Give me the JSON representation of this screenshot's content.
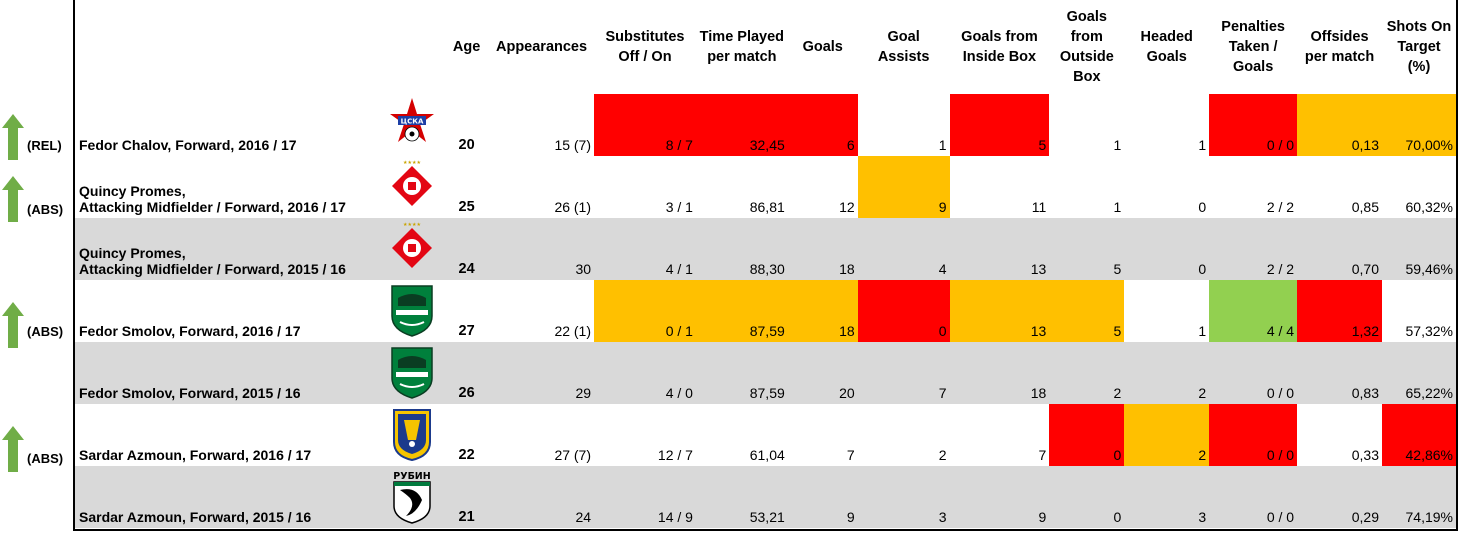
{
  "colors": {
    "worse": "#ff0000",
    "mid": "#ffc000",
    "better": "#92d050",
    "arrow": "#70ad47",
    "grey_row": "#d9d9d9"
  },
  "headers": {
    "age": "Age",
    "appearances": "Appearances",
    "substitutes": "Substitutes Off / On",
    "time_played": "Time Played per match",
    "goals": "Goals",
    "goal_assists": "Goal Assists",
    "goals_inside": "Goals from Inside Box",
    "goals_outside": "Goals from Outside Box",
    "headed": "Headed Goals",
    "penalties": "Penalties Taken / Goals",
    "offsides": "Offsides per match",
    "shots": "Shots On Target (%)"
  },
  "rows": [
    {
      "marker": "(REL)",
      "name_line1": "Fedor Chalov, Forward, 2016 / 17",
      "name_line2": "",
      "club_icon": "cska-moscow-logo",
      "age": "20",
      "appearances": "15 (7)",
      "substitutes": "8 / 7",
      "time_played": "32,45",
      "goals": "6",
      "goal_assists": "1",
      "goals_inside": "5",
      "goals_outside": "1",
      "headed": "1",
      "penalties": "0 / 0",
      "offsides": "0,13",
      "shots": "70,00%"
    },
    {
      "marker": "(ABS)",
      "name_line1": "Quincy Promes,",
      "name_line2": "Attacking Midfielder / Forward, 2016 / 17",
      "club_icon": "spartak-moscow-logo",
      "age": "25",
      "appearances": "26 (1)",
      "substitutes": "3 / 1",
      "time_played": "86,81",
      "goals": "12",
      "goal_assists": "9",
      "goals_inside": "11",
      "goals_outside": "1",
      "headed": "0",
      "penalties": "2 / 2",
      "offsides": "0,85",
      "shots": "60,32%"
    },
    {
      "marker": "",
      "name_line1": "Quincy Promes,",
      "name_line2": "Attacking Midfielder / Forward, 2015 / 16",
      "club_icon": "spartak-moscow-logo",
      "age": "24",
      "appearances": "30",
      "substitutes": "4 / 1",
      "time_played": "88,30",
      "goals": "18",
      "goal_assists": "4",
      "goals_inside": "13",
      "goals_outside": "5",
      "headed": "0",
      "penalties": "2 / 2",
      "offsides": "0,70",
      "shots": "59,46%"
    },
    {
      "marker": "(ABS)",
      "name_line1": "Fedor Smolov, Forward, 2016 / 17",
      "name_line2": "",
      "club_icon": "krasnodar-logo",
      "age": "27",
      "appearances": "22 (1)",
      "substitutes": "0 / 1",
      "time_played": "87,59",
      "goals": "18",
      "goal_assists": "0",
      "goals_inside": "13",
      "goals_outside": "5",
      "headed": "1",
      "penalties": "4 / 4",
      "offsides": "1,32",
      "shots": "57,32%"
    },
    {
      "marker": "",
      "name_line1": "Fedor Smolov, Forward, 2015 / 16",
      "name_line2": "",
      "club_icon": "krasnodar-logo",
      "age": "26",
      "appearances": "29",
      "substitutes": "4 / 0",
      "time_played": "87,59",
      "goals": "20",
      "goal_assists": "7",
      "goals_inside": "18",
      "goals_outside": "2",
      "headed": "2",
      "penalties": "0 / 0",
      "offsides": "0,83",
      "shots": "65,22%"
    },
    {
      "marker": "(ABS)",
      "name_line1": "Sardar Azmoun, Forward, 2016 / 17",
      "name_line2": "",
      "club_icon": "rostov-logo",
      "age": "22",
      "appearances": "27 (7)",
      "substitutes": "12 / 7",
      "time_played": "61,04",
      "goals": "7",
      "goal_assists": "2",
      "goals_inside": "7",
      "goals_outside": "0",
      "headed": "2",
      "penalties": "0 / 0",
      "offsides": "0,33",
      "shots": "42,86%"
    },
    {
      "marker": "",
      "name_line1": "Sardar Azmoun, Forward, 2015 / 16",
      "name_line2": "",
      "club_icon": "rubin-kazan-logo",
      "club_text": "РУБИН",
      "age": "21",
      "appearances": "24",
      "substitutes": "14 / 9",
      "time_played": "53,21",
      "goals": "9",
      "goal_assists": "3",
      "goals_inside": "9",
      "goals_outside": "0",
      "headed": "3",
      "penalties": "0 / 0",
      "offsides": "0,29",
      "shots": "74,19%"
    }
  ]
}
